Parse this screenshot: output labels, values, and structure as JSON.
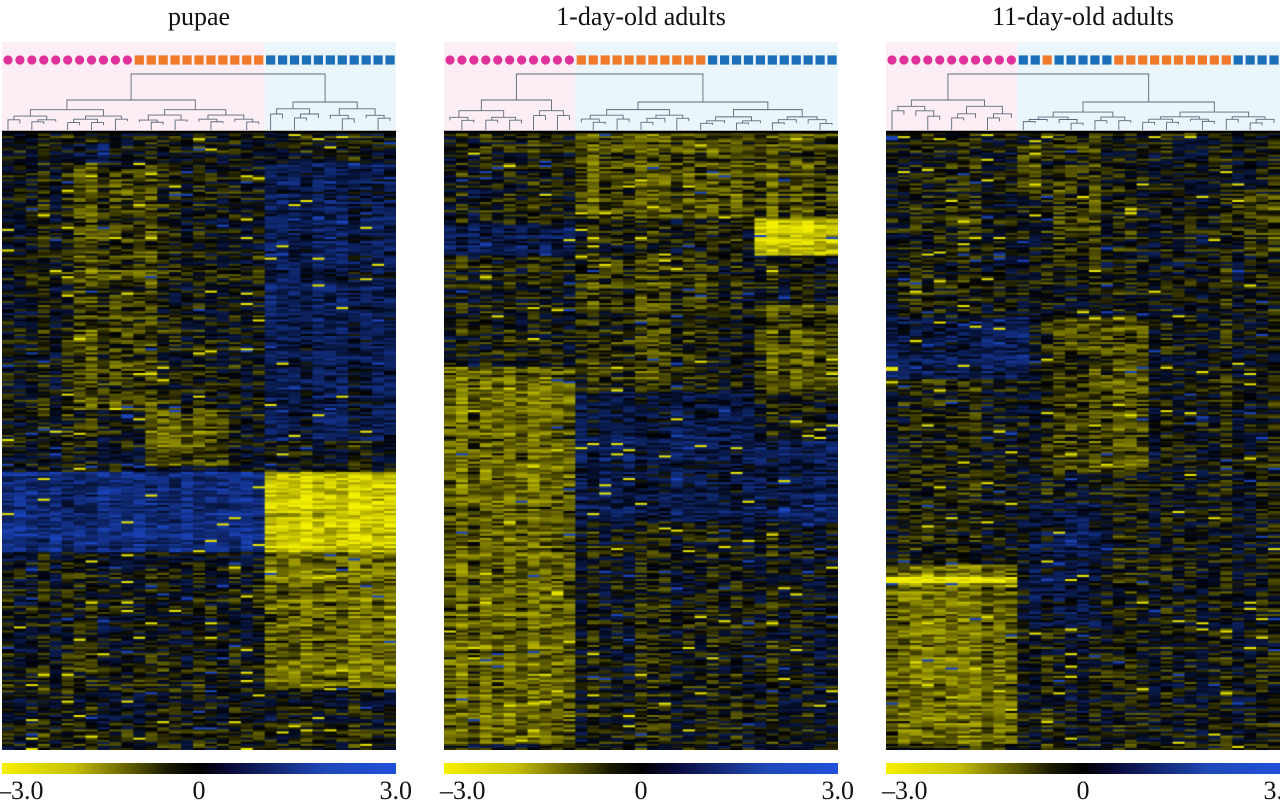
{
  "figure": {
    "background": "#ffffff"
  },
  "colors": {
    "group_pink": "#e0309a",
    "group_orange": "#f07a2a",
    "group_blue": "#1a6fb8",
    "cluster_shade_pink": "#fdeef5",
    "cluster_shade_blue": "#eaf6fb",
    "heat_low": "#f4f000",
    "heat_mid": "#000000",
    "heat_high": "#1f4fd8"
  },
  "chart_data": [
    {
      "type": "heatmap",
      "title": "pupae",
      "samples": [
        "pink",
        "pink",
        "pink",
        "pink",
        "pink",
        "pink",
        "pink",
        "pink",
        "pink",
        "pink",
        "pink",
        "orange",
        "orange",
        "orange",
        "orange",
        "orange",
        "orange",
        "orange",
        "orange",
        "orange",
        "orange",
        "orange",
        "blue",
        "blue",
        "blue",
        "blue",
        "blue",
        "blue",
        "blue",
        "blue",
        "blue",
        "blue",
        "blue"
      ],
      "sample_markers": {
        "pink": "circle",
        "orange": "square",
        "blue": "square"
      },
      "clusters": [
        {
          "from": 0,
          "to": 22,
          "shade": "pink"
        },
        {
          "from": 22,
          "to": 33,
          "shade": "blue"
        }
      ],
      "colorbar": {
        "min": -3.0,
        "mid": 0,
        "max": 3.0,
        "tick_labels": [
          "–3.0",
          "0",
          "3.0"
        ]
      }
    },
    {
      "type": "heatmap",
      "title": "1-day-old adults",
      "samples": [
        "pink",
        "pink",
        "pink",
        "pink",
        "pink",
        "pink",
        "pink",
        "pink",
        "pink",
        "pink",
        "pink",
        "orange",
        "orange",
        "orange",
        "orange",
        "orange",
        "orange",
        "orange",
        "orange",
        "orange",
        "orange",
        "orange",
        "blue",
        "blue",
        "blue",
        "blue",
        "blue",
        "blue",
        "blue",
        "blue",
        "blue",
        "blue",
        "blue"
      ],
      "sample_markers": {
        "pink": "circle",
        "orange": "square",
        "blue": "square"
      },
      "clusters": [
        {
          "from": 0,
          "to": 11,
          "shade": "pink"
        },
        {
          "from": 11,
          "to": 33,
          "shade": "blue"
        }
      ],
      "colorbar": {
        "min": -3.0,
        "mid": 0,
        "max": 3.0,
        "tick_labels": [
          "–3.0",
          "0",
          "3.0"
        ]
      }
    },
    {
      "type": "heatmap",
      "title": "11-day-old adults",
      "samples": [
        "pink",
        "pink",
        "pink",
        "pink",
        "pink",
        "pink",
        "pink",
        "pink",
        "pink",
        "pink",
        "pink",
        "blue",
        "blue",
        "orange",
        "blue",
        "blue",
        "blue",
        "blue",
        "blue",
        "orange",
        "orange",
        "orange",
        "orange",
        "orange",
        "orange",
        "orange",
        "orange",
        "orange",
        "orange",
        "blue",
        "blue",
        "blue",
        "blue"
      ],
      "sample_markers": {
        "pink": "circle",
        "orange": "square",
        "blue": "square"
      },
      "clusters": [
        {
          "from": 0,
          "to": 11,
          "shade": "pink"
        },
        {
          "from": 11,
          "to": 33,
          "shade": "blue"
        }
      ],
      "colorbar": {
        "min": -3.0,
        "mid": 0,
        "max": 3.0,
        "tick_labels": [
          "–3.0",
          "0",
          "3.0"
        ]
      }
    }
  ]
}
